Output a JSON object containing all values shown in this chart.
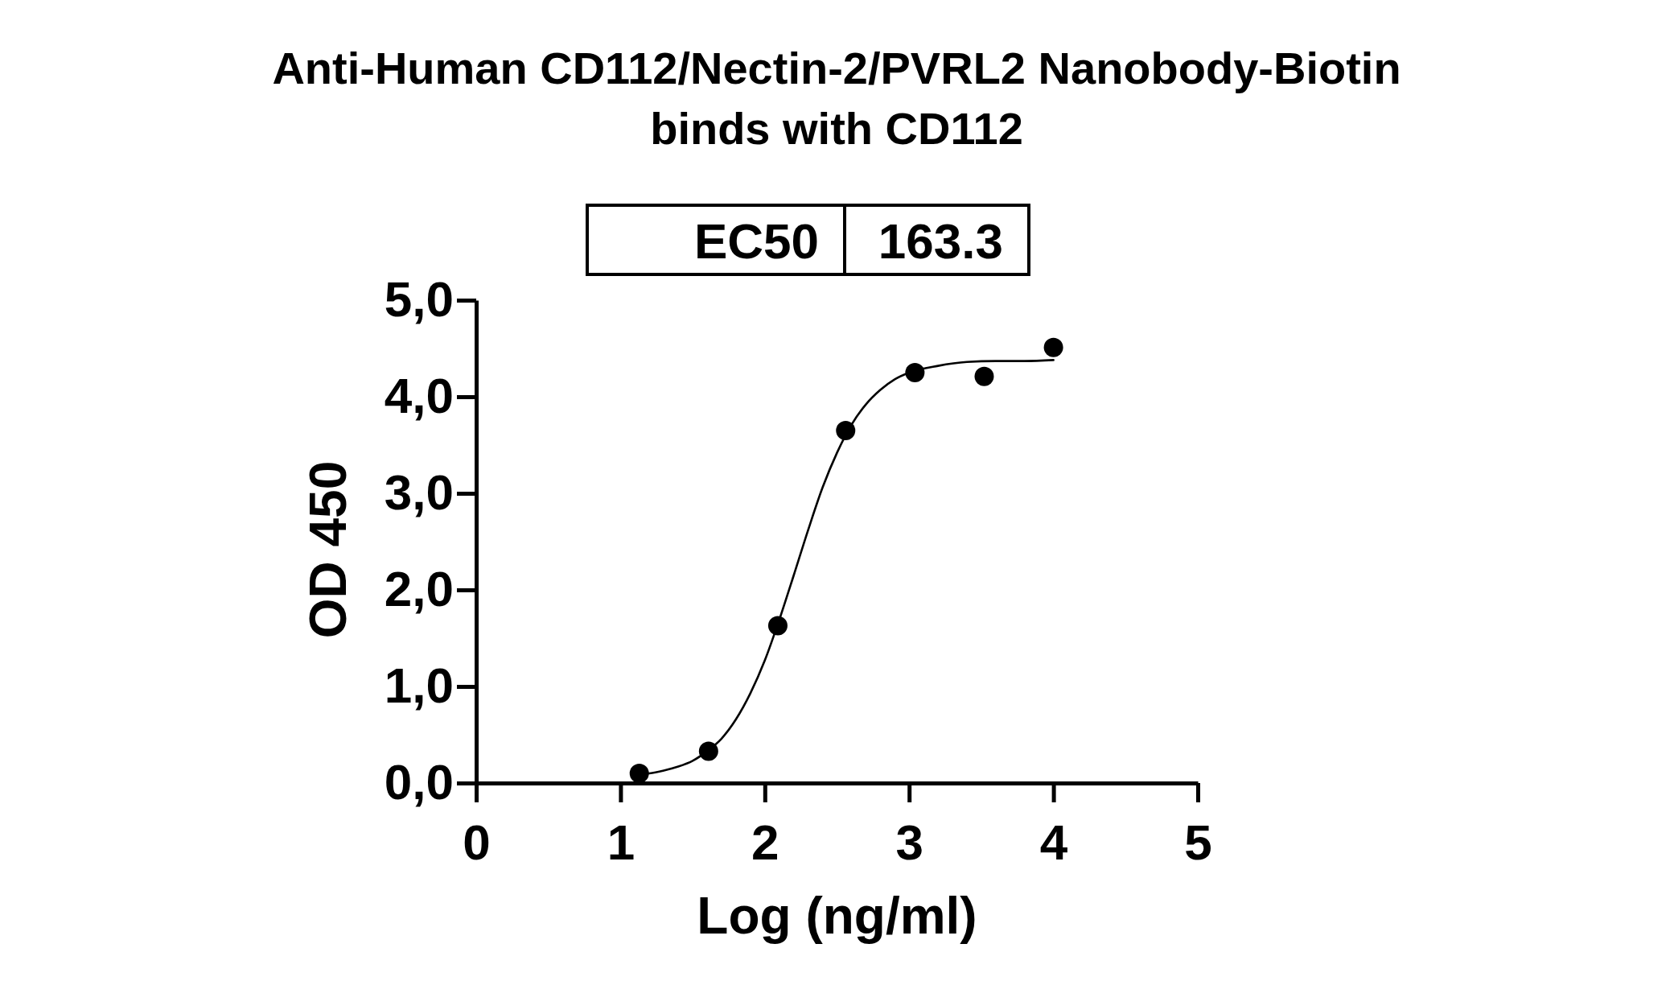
{
  "chart_data": {
    "type": "scatter",
    "title": "Anti-Human CD112/Nectin-2/PVRL2 Nanobody-Biotin binds with CD112",
    "xlabel": "Log (ng/ml)",
    "ylabel": "OD 450",
    "annotations": [
      "EC50",
      "163.3"
    ],
    "xlim": [
      0,
      5
    ],
    "ylim": [
      0,
      5
    ],
    "xticks": [
      0,
      1,
      2,
      3,
      4,
      5
    ],
    "yticks": [
      {
        "value": 0,
        "label": "0,0"
      },
      {
        "value": 1,
        "label": "1,0"
      },
      {
        "value": 2,
        "label": "2,0"
      },
      {
        "value": 3,
        "label": "3,0"
      },
      {
        "value": 4,
        "label": "4,0"
      },
      {
        "value": 5,
        "label": "5,0"
      }
    ],
    "marker": "circle",
    "series": [
      {
        "type": "line",
        "color": "#000000",
        "marker": "none",
        "x": [
          1.13,
          1.2,
          1.3,
          1.4,
          1.5,
          1.6,
          1.7,
          1.8,
          1.9,
          2.0,
          2.1,
          2.2,
          2.3,
          2.4,
          2.5,
          2.6,
          2.7,
          2.8,
          2.9,
          3.0,
          3.2,
          3.4,
          3.6,
          3.8,
          4.0
        ],
        "values": [
          0.09,
          0.1,
          0.13,
          0.17,
          0.23,
          0.33,
          0.46,
          0.66,
          0.93,
          1.27,
          1.69,
          2.15,
          2.62,
          3.06,
          3.42,
          3.71,
          3.92,
          4.07,
          4.18,
          4.25,
          4.32,
          4.36,
          4.37,
          4.37,
          4.38
        ]
      },
      {
        "color": "#000000",
        "x": [
          1.13,
          1.61,
          2.09,
          2.56,
          3.04,
          3.52,
          4.0
        ],
        "values": [
          0.1,
          0.33,
          1.63,
          3.65,
          4.25,
          4.21,
          4.51
        ]
      }
    ]
  }
}
